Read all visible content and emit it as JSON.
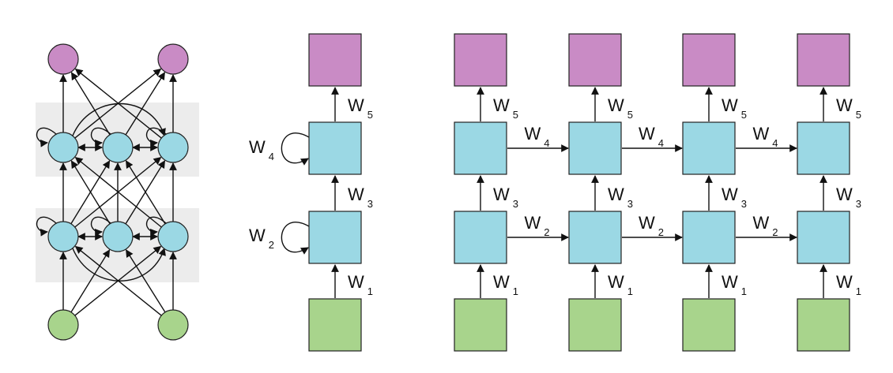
{
  "colors": {
    "output": "#c98bc5",
    "hidden": "#9bd8e4",
    "input": "#a8d48c",
    "panel": "#ececec",
    "stroke": "#222222"
  },
  "folded": {
    "labels": [
      {
        "key": "w5",
        "base": "W",
        "sub": "5"
      },
      {
        "key": "w3",
        "base": "W",
        "sub": "3"
      },
      {
        "key": "w1",
        "base": "W",
        "sub": "1"
      },
      {
        "key": "w4",
        "base": "W",
        "sub": "4"
      },
      {
        "key": "w2",
        "base": "W",
        "sub": "2"
      }
    ]
  },
  "unrolled": {
    "vertical_labels": [
      {
        "key": "w5",
        "base": "W",
        "sub": "5"
      },
      {
        "key": "w3",
        "base": "W",
        "sub": "3"
      },
      {
        "key": "w1",
        "base": "W",
        "sub": "1"
      }
    ],
    "horizontal_labels": [
      {
        "key": "w4",
        "base": "W",
        "sub": "4"
      },
      {
        "key": "w2",
        "base": "W",
        "sub": "2"
      }
    ]
  }
}
